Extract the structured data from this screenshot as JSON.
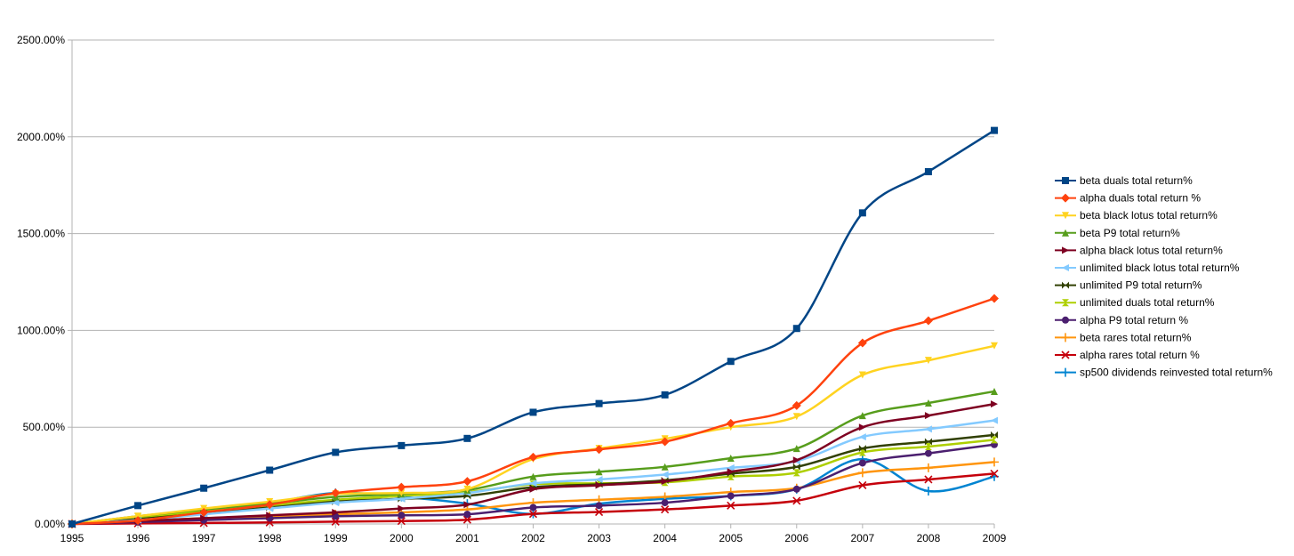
{
  "chart_data": {
    "type": "line",
    "title": "",
    "xlabel": "",
    "ylabel": "",
    "x": [
      "1995",
      "1996",
      "1997",
      "1998",
      "1999",
      "2000",
      "2001",
      "2002",
      "2003",
      "2004",
      "2005",
      "2006",
      "2007",
      "2008",
      "2009"
    ],
    "ylim": [
      0,
      2500
    ],
    "yticks": [
      0,
      500,
      1000,
      1500,
      2000,
      2500
    ],
    "ytick_labels": [
      "0.00%",
      "500.00%",
      "1000.00%",
      "1500.00%",
      "2000.00%",
      "2500.00%"
    ],
    "grid": "horizontal",
    "legend_position": "right",
    "series": [
      {
        "name": "beta duals total return%",
        "color": "#004586",
        "marker": "square",
        "values": [
          0,
          95,
          185,
          278,
          370,
          405,
          442,
          577,
          622,
          667,
          840,
          1010,
          1607,
          1820,
          2033
        ]
      },
      {
        "name": "alpha duals total return %",
        "color": "#ff420e",
        "marker": "diamond",
        "values": [
          0,
          18,
          60,
          100,
          160,
          190,
          220,
          345,
          385,
          425,
          520,
          612,
          935,
          1050,
          1165
        ]
      },
      {
        "name": "beta black lotus total return%",
        "color": "#ffd320",
        "marker": "triangle-down",
        "values": [
          0,
          40,
          80,
          115,
          155,
          160,
          180,
          335,
          390,
          440,
          500,
          555,
          770,
          845,
          920
        ]
      },
      {
        "name": "beta P9 total return%",
        "color": "#579d1c",
        "marker": "triangle-up",
        "values": [
          0,
          40,
          75,
          105,
          140,
          155,
          175,
          245,
          270,
          295,
          340,
          390,
          560,
          625,
          685
        ]
      },
      {
        "name": "alpha black lotus total return%",
        "color": "#7e0021",
        "marker": "triangle-right",
        "values": [
          0,
          15,
          30,
          45,
          60,
          80,
          100,
          180,
          200,
          220,
          270,
          330,
          500,
          560,
          620
        ]
      },
      {
        "name": "unlimited black lotus total return%",
        "color": "#83caff",
        "marker": "triangle-left",
        "values": [
          0,
          20,
          50,
          80,
          110,
          130,
          160,
          210,
          230,
          255,
          290,
          325,
          450,
          490,
          535
        ]
      },
      {
        "name": "unlimited P9 total return%",
        "color": "#314004",
        "marker": "bowtie",
        "values": [
          0,
          25,
          55,
          85,
          115,
          130,
          145,
          190,
          205,
          225,
          260,
          295,
          390,
          425,
          460
        ]
      },
      {
        "name": "unlimited duals total return%",
        "color": "#aecf00",
        "marker": "hourglass",
        "values": [
          0,
          35,
          65,
          95,
          125,
          145,
          165,
          205,
          210,
          215,
          245,
          265,
          370,
          400,
          435
        ]
      },
      {
        "name": "alpha P9 total return %",
        "color": "#4b1f6f",
        "marker": "circle",
        "values": [
          0,
          10,
          20,
          30,
          40,
          45,
          50,
          85,
          95,
          110,
          145,
          180,
          315,
          365,
          410
        ]
      },
      {
        "name": "beta rares  total return%",
        "color": "#ff950e",
        "marker": "plus",
        "values": [
          0,
          15,
          30,
          40,
          50,
          60,
          75,
          110,
          125,
          140,
          165,
          185,
          265,
          290,
          320
        ]
      },
      {
        "name": "alpha rares total return %",
        "color": "#c5000b",
        "marker": "cross",
        "values": [
          0,
          3,
          5,
          8,
          12,
          15,
          22,
          52,
          62,
          75,
          95,
          120,
          200,
          230,
          260
        ]
      },
      {
        "name": "sp500 dividends reinvested total return%",
        "color": "#0084d1",
        "marker": "plus",
        "values": [
          0,
          28,
          65,
          108,
          160,
          140,
          105,
          52,
          105,
          130,
          145,
          180,
          335,
          170,
          245
        ]
      }
    ]
  }
}
